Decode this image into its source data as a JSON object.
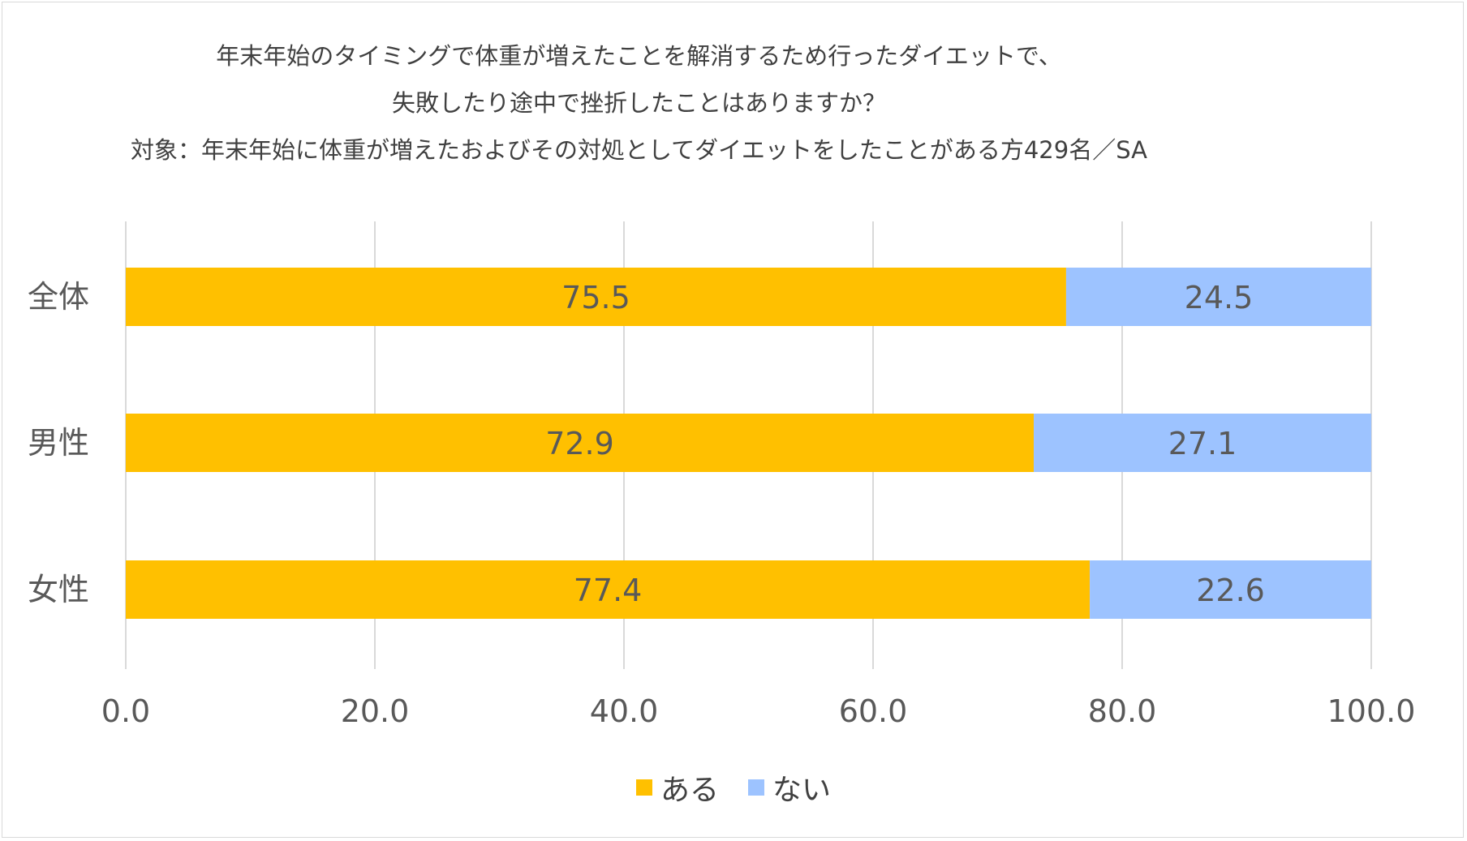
{
  "chart_data": {
    "type": "bar",
    "orientation": "horizontal",
    "stacked": true,
    "title_lines": [
      "年末年始のタイミングで体重が増えたことを解消するため行ったダイエットで、",
      "失敗したり途中で挫折したことはありますか？",
      "対象：年末年始に体重が増えたおよびその対処としてダイエットをしたことがある方429名／SA"
    ],
    "categories": [
      "全体",
      "男性",
      "女性"
    ],
    "series": [
      {
        "name": "ある",
        "color": "#FFC000",
        "values": [
          75.5,
          72.9,
          77.4
        ]
      },
      {
        "name": "ない",
        "color": "#9DC3FF",
        "values": [
          24.5,
          27.1,
          22.6
        ]
      }
    ],
    "xlim": [
      0,
      100
    ],
    "xticks": [
      "0.0",
      "20.0",
      "40.0",
      "60.0",
      "80.0",
      "100.0"
    ],
    "grid": true,
    "legend_position": "bottom",
    "data_labels": true
  }
}
